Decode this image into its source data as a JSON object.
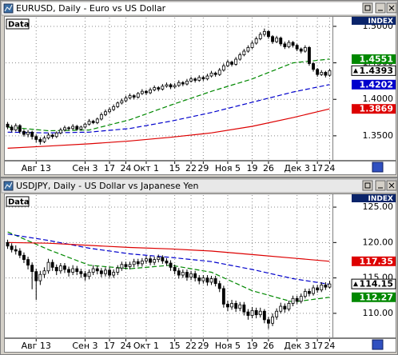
{
  "chart_data": [
    {
      "type": "candlestick",
      "title": "EURUSD, Daily - Euro vs US Dollar",
      "label": "Data",
      "index_label": "INDEX",
      "xlim": [
        -0.5,
        79.5
      ],
      "xticks": [
        {
          "value": 7,
          "label": "Авг 13"
        },
        {
          "value": 19,
          "label": "Сен 3"
        },
        {
          "value": 25,
          "label": "17"
        },
        {
          "value": 29,
          "label": "24"
        },
        {
          "value": 34,
          "label": "Окт 1"
        },
        {
          "value": 41,
          "label": "15"
        },
        {
          "value": 45,
          "label": "22"
        },
        {
          "value": 48,
          "label": "29"
        },
        {
          "value": 54,
          "label": "Ноя 5"
        },
        {
          "value": 60,
          "label": "19"
        },
        {
          "value": 64,
          "label": "26"
        },
        {
          "value": 71,
          "label": "Дек 3"
        },
        {
          "value": 76,
          "label": "17"
        },
        {
          "value": 79,
          "label": "24"
        }
      ],
      "ylim": [
        1.317,
        1.512
      ],
      "yticks": [
        {
          "value": 1.35,
          "label": "1.3500"
        },
        {
          "value": 1.4,
          "label": "1.4000"
        },
        {
          "value": 1.45,
          "label": "1.4500"
        },
        {
          "value": 1.5,
          "label": "1.5000"
        }
      ],
      "grid": true,
      "open": [
        1.366,
        1.362,
        1.358,
        1.364,
        1.356,
        1.352,
        1.355,
        1.349,
        1.345,
        1.342,
        1.347,
        1.351,
        1.349,
        1.354,
        1.358,
        1.361,
        1.36,
        1.363,
        1.359,
        1.362,
        1.366,
        1.37,
        1.368,
        1.373,
        1.379,
        1.383,
        1.386,
        1.39,
        1.395,
        1.398,
        1.402,
        1.405,
        1.403,
        1.408,
        1.411,
        1.409,
        1.413,
        1.416,
        1.414,
        1.418,
        1.42,
        1.417,
        1.419,
        1.423,
        1.421,
        1.425,
        1.428,
        1.426,
        1.43,
        1.428,
        1.432,
        1.436,
        1.434,
        1.44,
        1.446,
        1.451,
        1.448,
        1.455,
        1.461,
        1.466,
        1.471,
        1.477,
        1.483,
        1.489,
        1.493,
        1.486,
        1.479,
        1.484,
        1.476,
        1.472,
        1.478,
        1.474,
        1.469,
        1.466,
        1.471,
        1.449,
        1.441,
        1.434,
        1.437,
        1.433
      ],
      "high": [
        1.369,
        1.365,
        1.367,
        1.366,
        1.359,
        1.358,
        1.357,
        1.352,
        1.348,
        1.35,
        1.354,
        1.353,
        1.356,
        1.361,
        1.364,
        1.363,
        1.366,
        1.365,
        1.364,
        1.368,
        1.373,
        1.372,
        1.375,
        1.382,
        1.386,
        1.389,
        1.393,
        1.397,
        1.401,
        1.405,
        1.408,
        1.407,
        1.41,
        1.414,
        1.413,
        1.416,
        1.419,
        1.418,
        1.421,
        1.423,
        1.422,
        1.422,
        1.426,
        1.425,
        1.428,
        1.431,
        1.43,
        1.433,
        1.432,
        1.435,
        1.439,
        1.438,
        1.443,
        1.449,
        1.454,
        1.453,
        1.458,
        1.464,
        1.469,
        1.474,
        1.48,
        1.486,
        1.492,
        1.497,
        1.495,
        1.488,
        1.487,
        1.486,
        1.479,
        1.481,
        1.48,
        1.476,
        1.471,
        1.474,
        1.473,
        1.451,
        1.443,
        1.44,
        1.439,
        1.442
      ],
      "low": [
        1.359,
        1.355,
        1.356,
        1.353,
        1.349,
        1.348,
        1.345,
        1.341,
        1.338,
        1.34,
        1.345,
        1.346,
        1.347,
        1.352,
        1.356,
        1.357,
        1.358,
        1.357,
        1.357,
        1.36,
        1.364,
        1.366,
        1.366,
        1.371,
        1.377,
        1.381,
        1.384,
        1.388,
        1.393,
        1.396,
        1.4,
        1.4,
        1.401,
        1.406,
        1.406,
        1.407,
        1.411,
        1.411,
        1.412,
        1.416,
        1.414,
        1.415,
        1.417,
        1.418,
        1.419,
        1.423,
        1.423,
        1.424,
        1.425,
        1.426,
        1.43,
        1.431,
        1.432,
        1.438,
        1.444,
        1.445,
        1.446,
        1.453,
        1.459,
        1.464,
        1.469,
        1.475,
        1.481,
        1.486,
        1.483,
        1.476,
        1.477,
        1.473,
        1.469,
        1.47,
        1.471,
        1.466,
        1.463,
        1.464,
        1.446,
        1.438,
        1.431,
        1.432,
        1.43,
        1.431
      ],
      "close": [
        1.362,
        1.358,
        1.364,
        1.356,
        1.352,
        1.355,
        1.349,
        1.345,
        1.342,
        1.347,
        1.351,
        1.349,
        1.354,
        1.358,
        1.361,
        1.36,
        1.363,
        1.359,
        1.362,
        1.366,
        1.37,
        1.368,
        1.373,
        1.379,
        1.383,
        1.386,
        1.39,
        1.395,
        1.398,
        1.402,
        1.405,
        1.403,
        1.408,
        1.411,
        1.409,
        1.413,
        1.416,
        1.414,
        1.418,
        1.42,
        1.417,
        1.419,
        1.423,
        1.421,
        1.425,
        1.428,
        1.426,
        1.43,
        1.428,
        1.432,
        1.436,
        1.434,
        1.44,
        1.446,
        1.451,
        1.448,
        1.455,
        1.461,
        1.466,
        1.471,
        1.477,
        1.483,
        1.489,
        1.493,
        1.486,
        1.479,
        1.484,
        1.476,
        1.472,
        1.478,
        1.474,
        1.469,
        1.466,
        1.471,
        1.449,
        1.441,
        1.434,
        1.437,
        1.433,
        1.4393
      ],
      "lines": [
        {
          "color": "#008800",
          "dash": true,
          "show_label": true,
          "x": [
            0,
            10,
            20,
            30,
            40,
            50,
            60,
            70,
            79
          ],
          "values": [
            1.362,
            1.357,
            1.358,
            1.372,
            1.392,
            1.411,
            1.428,
            1.45,
            1.4551
          ]
        },
        {
          "color": "#0000cc",
          "dash": true,
          "show_label": true,
          "x": [
            0,
            10,
            20,
            30,
            40,
            50,
            60,
            70,
            79
          ],
          "values": [
            1.355,
            1.354,
            1.355,
            1.36,
            1.37,
            1.382,
            1.396,
            1.41,
            1.4202
          ]
        },
        {
          "color": "#dd0000",
          "dash": false,
          "show_label": true,
          "x": [
            0,
            10,
            20,
            30,
            40,
            50,
            60,
            70,
            79
          ],
          "values": [
            1.333,
            1.336,
            1.339,
            1.343,
            1.348,
            1.354,
            1.363,
            1.375,
            1.3869
          ]
        }
      ]
    },
    {
      "type": "candlestick",
      "title": "USDJPY, Daily - US Dollar vs Japanese Yen",
      "label": "Data",
      "index_label": "INDEX",
      "xlim": [
        -0.5,
        79.5
      ],
      "xticks": [
        {
          "value": 7,
          "label": "Авг 13"
        },
        {
          "value": 19,
          "label": "Сен 3"
        },
        {
          "value": 25,
          "label": "17"
        },
        {
          "value": 29,
          "label": "24"
        },
        {
          "value": 34,
          "label": "Окт 1"
        },
        {
          "value": 41,
          "label": "15"
        },
        {
          "value": 45,
          "label": "22"
        },
        {
          "value": 48,
          "label": "29"
        },
        {
          "value": 54,
          "label": "Ноя 5"
        },
        {
          "value": 60,
          "label": "19"
        },
        {
          "value": 64,
          "label": "26"
        },
        {
          "value": 71,
          "label": "Дек 3"
        },
        {
          "value": 76,
          "label": "17"
        },
        {
          "value": 79,
          "label": "24"
        }
      ],
      "ylim": [
        106.6,
        126.7
      ],
      "yticks": [
        {
          "value": 110,
          "label": "110.00"
        },
        {
          "value": 115,
          "label": "115.00"
        },
        {
          "value": 120,
          "label": "120.00"
        },
        {
          "value": 125,
          "label": "125.00"
        }
      ],
      "grid": true,
      "open": [
        120.0,
        119.5,
        119.0,
        118.8,
        118.2,
        117.6,
        116.8,
        115.9,
        114.6,
        115.5,
        116.0,
        117.2,
        116.5,
        116.0,
        116.7,
        116.2,
        115.8,
        116.3,
        115.9,
        115.6,
        115.2,
        115.8,
        116.3,
        116.0,
        115.6,
        116.1,
        115.4,
        115.8,
        116.4,
        116.9,
        116.6,
        116.9,
        117.3,
        117.0,
        117.4,
        117.7,
        117.2,
        117.6,
        117.9,
        117.4,
        117.1,
        116.5,
        116.0,
        115.4,
        115.8,
        115.1,
        115.6,
        115.0,
        114.6,
        115.0,
        114.4,
        114.9,
        114.2,
        113.5,
        111.3,
        110.9,
        111.4,
        110.7,
        111.2,
        110.2,
        109.7,
        110.4,
        109.8,
        110.3,
        109.1,
        108.6,
        109.5,
        110.3,
        111.0,
        110.6,
        111.4,
        112.1,
        111.7,
        112.4,
        113.1,
        112.8,
        113.6,
        113.3,
        114.0,
        113.7
      ],
      "high": [
        120.4,
        119.9,
        119.6,
        119.2,
        118.6,
        118.0,
        117.2,
        116.3,
        116.0,
        116.5,
        117.7,
        117.6,
        116.9,
        117.1,
        117.1,
        116.6,
        116.8,
        116.7,
        116.3,
        116.0,
        116.2,
        116.8,
        116.7,
        116.4,
        116.5,
        116.5,
        116.2,
        116.8,
        117.3,
        117.3,
        117.3,
        117.7,
        117.7,
        117.8,
        118.1,
        118.1,
        118.0,
        118.3,
        118.2,
        117.8,
        117.5,
        116.9,
        116.4,
        116.2,
        116.2,
        116.0,
        116.0,
        115.4,
        115.4,
        115.4,
        115.3,
        115.3,
        114.6,
        113.9,
        111.8,
        111.9,
        111.8,
        111.6,
        111.6,
        110.6,
        110.9,
        110.8,
        110.8,
        110.6,
        109.5,
        110.0,
        110.7,
        111.5,
        111.4,
        111.8,
        112.5,
        112.5,
        112.8,
        113.5,
        113.5,
        114.0,
        114.0,
        114.4,
        114.4,
        114.6
      ],
      "low": [
        119.1,
        118.6,
        118.3,
        117.8,
        117.1,
        116.2,
        113.4,
        111.9,
        114.0,
        115.0,
        115.6,
        116.0,
        115.4,
        115.6,
        115.7,
        115.2,
        115.4,
        115.4,
        115.0,
        114.6,
        114.8,
        115.4,
        115.5,
        115.1,
        115.2,
        115.0,
        115.0,
        115.4,
        116.0,
        116.2,
        116.2,
        116.5,
        116.6,
        116.6,
        117.0,
        116.8,
        116.8,
        117.2,
        117.0,
        116.7,
        116.0,
        115.5,
        114.9,
        115.0,
        114.6,
        114.7,
        114.5,
        114.1,
        114.2,
        113.9,
        114.0,
        113.8,
        113.0,
        110.8,
        110.3,
        110.5,
        110.2,
        110.3,
        109.7,
        109.1,
        109.3,
        109.3,
        109.4,
        108.6,
        107.8,
        108.2,
        109.1,
        110.0,
        110.1,
        110.3,
        111.0,
        111.3,
        111.4,
        112.1,
        112.4,
        112.5,
        112.9,
        113.0,
        113.3,
        113.5
      ],
      "close": [
        119.5,
        119.0,
        118.8,
        118.2,
        117.6,
        116.8,
        115.9,
        114.6,
        115.5,
        116.0,
        117.2,
        116.5,
        116.0,
        116.7,
        116.2,
        115.8,
        116.3,
        115.9,
        115.6,
        115.2,
        115.8,
        116.3,
        116.0,
        115.6,
        116.1,
        115.4,
        115.8,
        116.4,
        116.9,
        116.6,
        116.9,
        117.3,
        117.0,
        117.4,
        117.7,
        117.2,
        117.6,
        117.9,
        117.4,
        117.1,
        116.5,
        116.0,
        115.4,
        115.8,
        115.1,
        115.6,
        115.0,
        114.6,
        115.0,
        114.4,
        114.9,
        114.2,
        113.5,
        111.3,
        110.9,
        111.4,
        110.7,
        111.2,
        110.2,
        109.7,
        110.4,
        109.8,
        110.3,
        109.1,
        108.6,
        109.5,
        110.3,
        111.0,
        110.6,
        111.4,
        112.1,
        111.7,
        112.4,
        113.1,
        112.8,
        113.6,
        113.3,
        114.0,
        113.7,
        114.15
      ],
      "lines": [
        {
          "color": "#008800",
          "dash": true,
          "show_label": true,
          "x": [
            0,
            10,
            20,
            30,
            40,
            50,
            60,
            70,
            79
          ],
          "values": [
            121.5,
            119.0,
            116.8,
            116.3,
            116.8,
            115.8,
            113.2,
            111.6,
            112.27
          ]
        },
        {
          "color": "#0000cc",
          "dash": true,
          "show_label": false,
          "x": [
            0,
            10,
            20,
            30,
            40,
            50,
            60,
            70,
            79
          ],
          "values": [
            121.2,
            120.3,
            119.2,
            118.4,
            117.9,
            117.3,
            116.2,
            114.9,
            114.1
          ]
        },
        {
          "color": "#dd0000",
          "dash": false,
          "show_label": true,
          "x": [
            0,
            10,
            20,
            30,
            40,
            50,
            60,
            70,
            79
          ],
          "values": [
            120.0,
            119.9,
            119.6,
            119.3,
            119.1,
            118.8,
            118.3,
            117.8,
            117.35
          ]
        }
      ]
    }
  ]
}
